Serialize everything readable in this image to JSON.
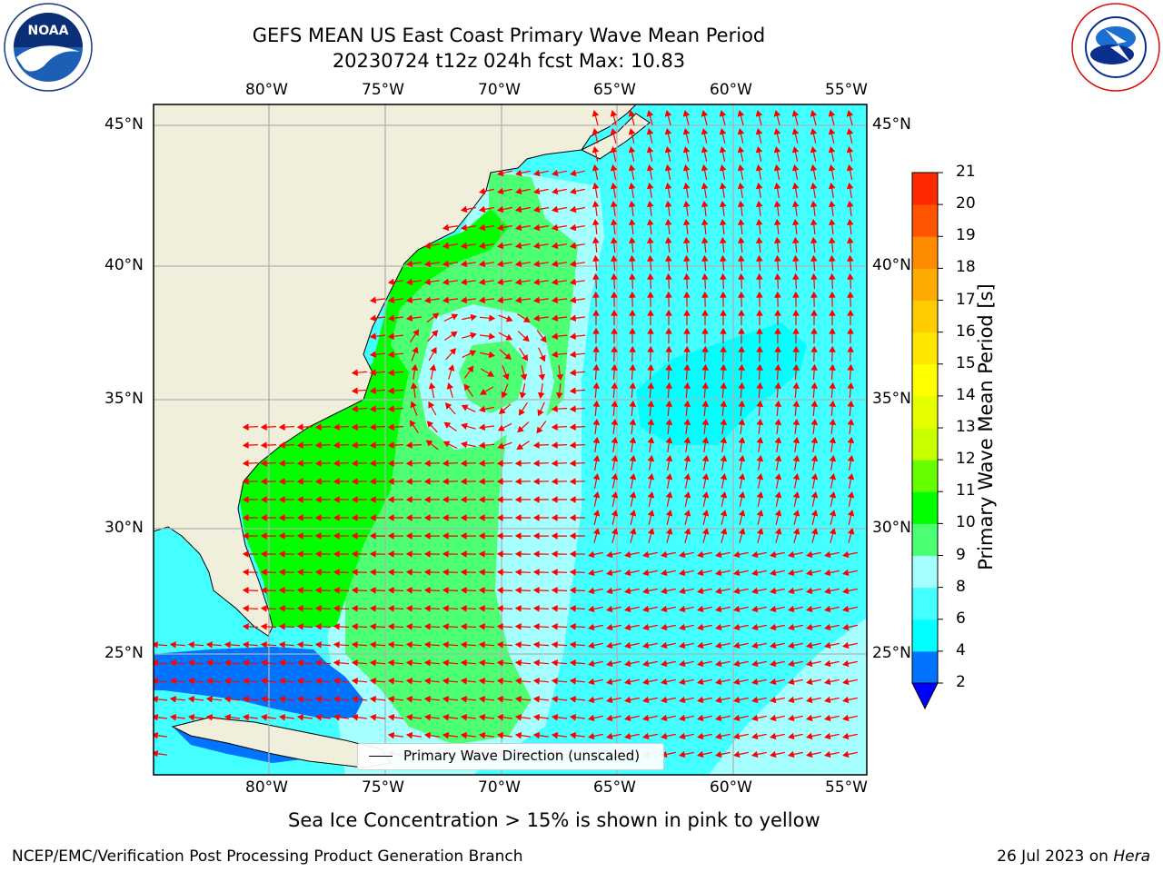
{
  "title": {
    "line1": "GEFS MEAN US East Coast Primary Wave Mean Period",
    "line2": "20230724 t12z 024h fcst   Max: 10.83"
  },
  "logos": {
    "left": "NOAA",
    "left_ring": "NATIONAL OCEANIC AND ATMOSPHERIC ADMINISTRATION · U.S. DEPARTMENT OF COMMERCE",
    "right_ring": "NATIONAL WEATHER SERVICE"
  },
  "axes": {
    "lon_labels": [
      "80°W",
      "75°W",
      "70°W",
      "65°W",
      "60°W",
      "55°W"
    ],
    "lat_labels": [
      "45°N",
      "40°N",
      "35°N",
      "30°N",
      "25°N"
    ]
  },
  "legend": {
    "label": "Primary Wave Direction (unscaled)"
  },
  "colorbar": {
    "label": "Primary Wave Mean Period [s]",
    "ticks": [
      "2",
      "4",
      "6",
      "8",
      "9",
      "10",
      "11",
      "12",
      "13",
      "14",
      "15",
      "16",
      "17",
      "18",
      "19",
      "20",
      "21"
    ],
    "colors": [
      "#0073ff",
      "#00ffff",
      "#43ffff",
      "#a5ffff",
      "#4dff73",
      "#00ff00",
      "#66ff00",
      "#c8ff00",
      "#e6ff00",
      "#ffff00",
      "#ffe600",
      "#ffcc00",
      "#ffaa00",
      "#ff8c00",
      "#ff5500",
      "#ff2a00"
    ],
    "under_color": "#0000ff"
  },
  "note": "Sea Ice Concentration > 15% is shown in pink to yellow",
  "footer": {
    "left": "NCEP/EMC/Verification Post Processing Product Generation Branch",
    "right_date": "26 Jul 2023 on ",
    "right_host": "Hera"
  },
  "colors": {
    "land": "#efefdb",
    "arrow": "#ff0000",
    "grid": "#b0b0b0"
  }
}
